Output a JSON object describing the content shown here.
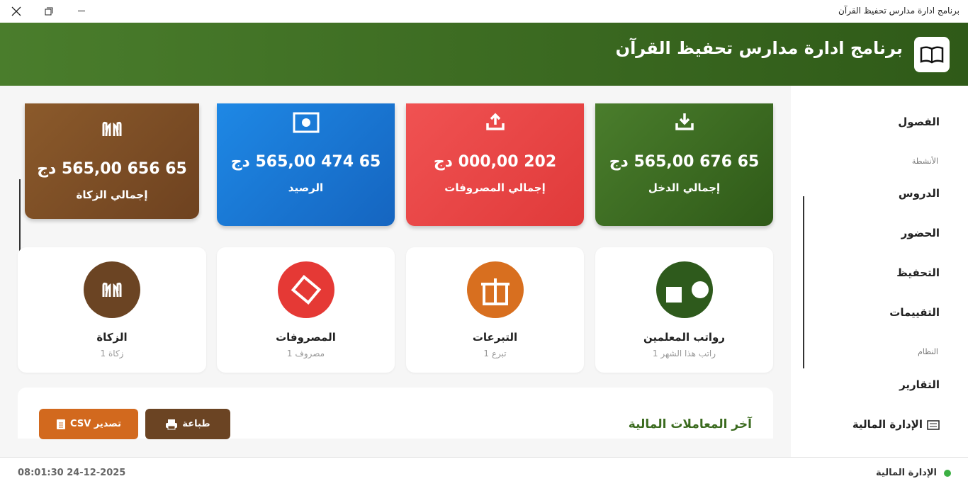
{
  "window": {
    "title": "برنامج ادارة مدارس تحفيظ القرآن"
  },
  "header": {
    "title": "برنامج ادارة مدارس تحفيظ القرآن"
  },
  "sidebar": {
    "items": [
      {
        "label": "الفصول"
      },
      {
        "section": "الأنشطة"
      },
      {
        "label": "الدروس"
      },
      {
        "label": "الحضور"
      },
      {
        "label": "التحفيظ"
      },
      {
        "label": "التقييمات"
      },
      {
        "section": "النظام"
      },
      {
        "label": "التقارير"
      },
      {
        "label": "الإدارة المالية"
      }
    ]
  },
  "stats": [
    {
      "value": "65 676 565,00 دج",
      "label": "إجمالي الدخل"
    },
    {
      "value": "202 000,00 دج",
      "label": "إجمالي المصروفات"
    },
    {
      "value": "65 474 565,00 دج",
      "label": "الرصيد"
    },
    {
      "value": "65 656 565,00 دج",
      "label": "إجمالي الزكاة"
    }
  ],
  "categories": [
    {
      "name": "رواتب المعلمين",
      "count": "1 راتب هذا الشهر"
    },
    {
      "name": "التبرعات",
      "count": "1 تبرع"
    },
    {
      "name": "المصروفات",
      "count": "1 مصروف"
    },
    {
      "name": "الزكاة",
      "count": "1 زكاة"
    }
  ],
  "transactions": {
    "title": "آخر المعاملات المالية",
    "print": "طباعة",
    "export": "CSV تصدير"
  },
  "status": {
    "page": "الإدارة المالية",
    "datetime": "08:01:30 24-12-2025"
  }
}
